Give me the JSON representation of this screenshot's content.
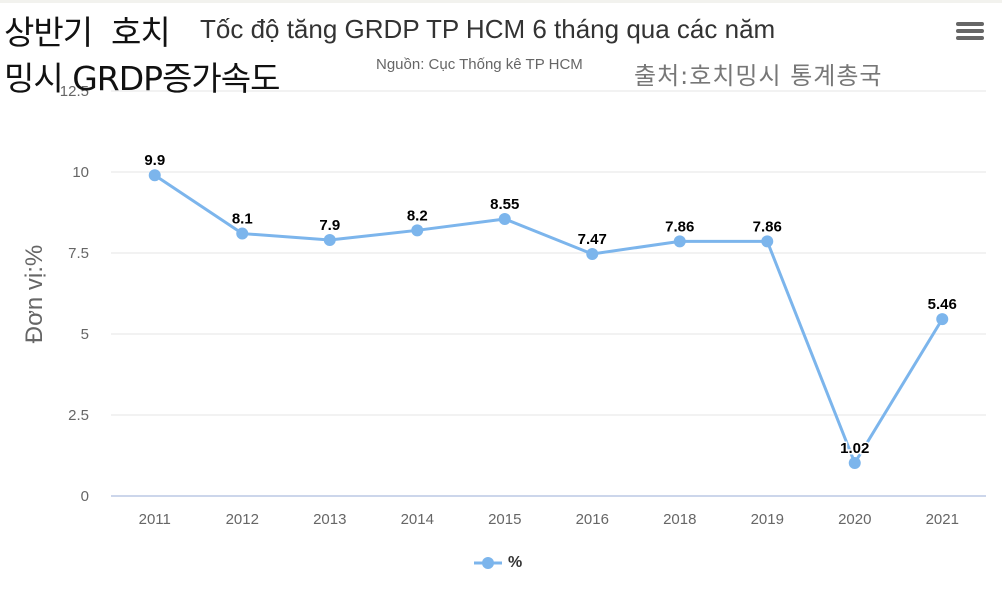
{
  "overlay": {
    "korean_title_line1": "상반기  호치",
    "korean_title_line2": "밍시 GRDP증가속도",
    "korean_source": "출처:호치밍시 통계총국"
  },
  "header": {
    "title": "Tốc độ tăng GRDP TP HCM 6 tháng qua các năm",
    "subtitle": "Nguồn: Cục Thống kê TP HCM",
    "menu_icon": "hamburger-menu-icon"
  },
  "legend": {
    "label": "%"
  },
  "colors": {
    "series": "#7cb5ec",
    "grid": "#e6e6e6",
    "axis_line": "#ccd6eb"
  },
  "chart_data": {
    "type": "line",
    "title": "Tốc độ tăng GRDP TP HCM 6 tháng qua các năm",
    "subtitle": "Nguồn: Cục Thống kê TP HCM",
    "xlabel": "",
    "ylabel": "Đơn vị:%",
    "categories": [
      "2011",
      "2012",
      "2013",
      "2014",
      "2015",
      "2016",
      "2018",
      "2019",
      "2020",
      "2021"
    ],
    "series": [
      {
        "name": "%",
        "values": [
          9.9,
          8.1,
          7.9,
          8.2,
          8.55,
          7.47,
          7.86,
          7.86,
          1.02,
          5.46
        ]
      }
    ],
    "data_labels": [
      "9.9",
      "8.1",
      "7.9",
      "8.2",
      "8.55",
      "7.47",
      "7.86",
      "7.86",
      "1.02",
      "5.46"
    ],
    "yticks": [
      "0",
      "2.5",
      "5",
      "7.5",
      "10",
      "12.5"
    ],
    "ylim": [
      0,
      12.5
    ],
    "grid": true,
    "legend_position": "bottom-center"
  }
}
